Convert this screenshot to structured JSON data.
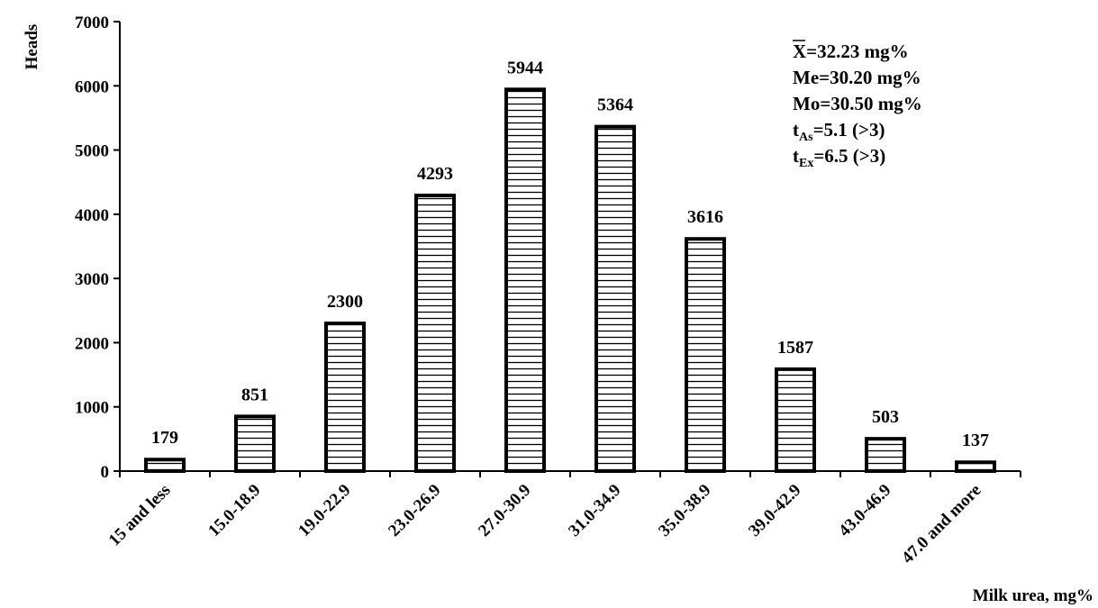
{
  "chart_data": {
    "type": "bar",
    "title": "",
    "xlabel": "Milk urea, mg%",
    "ylabel": "Heads",
    "ylim": [
      0,
      7000
    ],
    "yticks": [
      0,
      1000,
      2000,
      3000,
      4000,
      5000,
      6000,
      7000
    ],
    "grid": false,
    "bar_fill": "horizontal-hatch",
    "categories": [
      "15 and less",
      "15.0-18.9",
      "19.0-22.9",
      "23.0-26.9",
      "27.0-30.9",
      "31.0-34.9",
      "35.0-38.9",
      "39.0-42.9",
      "43.0-46.9",
      "47.0 and more"
    ],
    "values": [
      179,
      851,
      2300,
      4293,
      5944,
      5364,
      3616,
      1587,
      503,
      137
    ],
    "annotations": [
      {
        "id": "mean",
        "main": "X",
        "rest": "=32.23 mg%"
      },
      {
        "id": "median",
        "main": "Me=30.20 mg%"
      },
      {
        "id": "mode",
        "main": "Mo=30.50 mg%"
      },
      {
        "id": "asym",
        "main": "t",
        "sub": "As",
        "rest": "=5.1 (>3)"
      },
      {
        "id": "excess",
        "main": "t",
        "sub": "Ex",
        "rest": "=6.5 (>3)"
      }
    ]
  }
}
